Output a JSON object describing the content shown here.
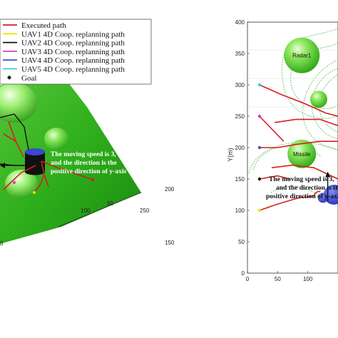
{
  "chart_data": [
    {
      "type": "scatter",
      "subtype": "3d-surface",
      "title": "",
      "legend": {
        "placement": "top-left",
        "entries": [
          {
            "label": "Executed path",
            "color": "#d42020",
            "marker": "line"
          },
          {
            "label": "UAV1 4D Coop. replanning path",
            "color": "#e6e600",
            "marker": "line"
          },
          {
            "label": "UAV2 4D Coop. replanning path",
            "color": "#111111",
            "marker": "line"
          },
          {
            "label": "UAV3 4D Coop. replanning path",
            "color": "#d040d0",
            "marker": "line"
          },
          {
            "label": "UAV4 4D Coop. replanning path",
            "color": "#4a55c8",
            "marker": "line"
          },
          {
            "label": "UAV5 4D Coop. replanning path",
            "color": "#30d0d8",
            "marker": "line"
          },
          {
            "label": "Goal",
            "color": "#111111",
            "marker": "diamond"
          }
        ]
      },
      "axis_ticks": [
        "250",
        "200",
        "150",
        "100",
        "50",
        "0"
      ],
      "annotation": [
        "The moving speed is 3,",
        "and the direction is the",
        "positive direction of y-axis"
      ],
      "annotation_color": "#ffffff"
    },
    {
      "type": "scatter",
      "subtype": "2d-map",
      "title": "",
      "xlabel": "",
      "ylabel": "Y(m)",
      "xlim": [
        0,
        150
      ],
      "ylim": [
        0,
        400
      ],
      "x_ticks": [
        0,
        50,
        100
      ],
      "y_ticks": [
        0,
        50,
        100,
        150,
        200,
        250,
        300,
        350,
        400
      ],
      "threats": [
        {
          "label": "Radar1",
          "x": 90,
          "y": 347,
          "r": 25
        },
        {
          "label": "",
          "x": 118,
          "y": 277,
          "r": 12
        },
        {
          "label": "Missile",
          "x": 90,
          "y": 190,
          "r": 20
        }
      ],
      "moving_obstacle": {
        "x": 143,
        "y": 125,
        "r": 14
      },
      "small_obstacle": {
        "x": 125,
        "y": 120,
        "r": 7
      },
      "start_points": [
        {
          "uav": "UAV5",
          "x": 20,
          "y": 300,
          "color": "#30d0d8"
        },
        {
          "uav": "UAV3",
          "x": 20,
          "y": 250,
          "color": "#d040d0"
        },
        {
          "uav": "UAV4",
          "x": 20,
          "y": 200,
          "color": "#4a55c8"
        },
        {
          "uav": "UAV2",
          "x": 20,
          "y": 150,
          "color": "#111111"
        },
        {
          "uav": "UAV1",
          "x": 20,
          "y": 100,
          "color": "#e6e600"
        }
      ],
      "executed_paths": [
        [
          [
            20,
            300
          ],
          [
            55,
            285
          ],
          [
            95,
            270
          ],
          [
            130,
            255
          ],
          [
            150,
            250
          ]
        ],
        [
          [
            20,
            250
          ],
          [
            45,
            225
          ],
          [
            60,
            210
          ]
        ],
        [
          [
            45,
            240
          ],
          [
            80,
            245
          ],
          [
            120,
            245
          ],
          [
            150,
            235
          ]
        ],
        [
          [
            20,
            200
          ],
          [
            50,
            200
          ],
          [
            80,
            205
          ],
          [
            120,
            210
          ],
          [
            150,
            210
          ]
        ],
        [
          [
            20,
            150
          ],
          [
            50,
            155
          ],
          [
            70,
            150
          ]
        ],
        [
          [
            40,
            168
          ],
          [
            75,
            172
          ],
          [
            110,
            168
          ],
          [
            150,
            150
          ]
        ],
        [
          [
            20,
            100
          ],
          [
            50,
            110
          ],
          [
            85,
            120
          ],
          [
            110,
            123
          ]
        ],
        [
          [
            110,
            123
          ],
          [
            113,
            128
          ],
          [
            117,
            130
          ],
          [
            121,
            130
          ]
        ]
      ],
      "arrow": {
        "from": [
          133,
          115
        ],
        "to": [
          133,
          162
        ]
      },
      "annotation": [
        "The moving speed is 3,",
        "and the direction is the",
        "positive direction of y-axis"
      ],
      "annotation_color": "#111111"
    }
  ]
}
